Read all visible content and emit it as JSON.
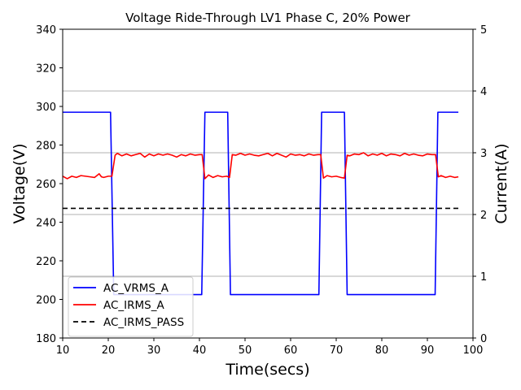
{
  "chart_data": {
    "type": "line",
    "title": "Voltage Ride-Through LV1 Phase C, 20% Power",
    "xlabel": "Time(secs)",
    "ylabel_left": "Voltage(V)",
    "ylabel_right": "Current(A)",
    "xlim": [
      10,
      100
    ],
    "ylim_left": [
      180,
      340
    ],
    "ylim_right": [
      0,
      5
    ],
    "x_ticks": [
      10,
      20,
      30,
      40,
      50,
      60,
      70,
      80,
      90,
      100
    ],
    "y_ticks_left": [
      180,
      200,
      220,
      240,
      260,
      280,
      300,
      320,
      340
    ],
    "y_ticks_right": [
      0,
      1,
      2,
      3,
      4,
      5
    ],
    "grid": "horizontal lines at right-axis ticks",
    "legend_position": "lower-left",
    "series": [
      {
        "name": "AC_VRMS_A",
        "axis": "left",
        "color": "#0000ff",
        "style": "solid",
        "x": [
          10,
          20.5,
          21.2,
          40.5,
          41.2,
          46.2,
          46.8,
          66.2,
          66.8,
          71.8,
          72.4,
          91.7,
          92.3,
          96.8
        ],
        "y": [
          297,
          297,
          202.5,
          202.5,
          297,
          297,
          202.5,
          202.5,
          297,
          297,
          202.5,
          202.5,
          297,
          297
        ]
      },
      {
        "name": "AC_IRMS_A",
        "axis": "right",
        "color": "#ff0000",
        "style": "solid",
        "x": [
          10,
          11,
          12,
          13,
          14,
          15,
          16,
          17,
          18,
          18.5,
          19,
          20,
          20.8,
          21.5,
          22,
          23,
          24,
          25,
          26,
          27,
          28,
          29,
          30,
          31,
          32,
          33,
          34,
          35,
          36,
          37,
          38,
          39,
          40,
          40.6,
          41.2,
          42,
          43,
          44,
          45,
          46,
          46.6,
          47.2,
          48,
          49,
          50,
          51,
          52,
          53,
          54,
          55,
          56,
          57,
          58,
          59,
          60,
          61,
          62,
          63,
          64,
          65,
          66,
          66.6,
          67.2,
          68,
          69,
          70,
          71,
          71.8,
          72.4,
          73,
          74,
          75,
          76,
          77,
          78,
          79,
          80,
          81,
          82,
          83,
          84,
          85,
          86,
          87,
          88,
          89,
          90,
          91,
          91.8,
          92.4,
          93,
          94,
          95,
          96,
          96.8
        ],
        "y": [
          2.62,
          2.58,
          2.62,
          2.6,
          2.63,
          2.62,
          2.61,
          2.6,
          2.66,
          2.61,
          2.6,
          2.62,
          2.62,
          2.96,
          2.99,
          2.95,
          2.98,
          2.95,
          2.97,
          2.99,
          2.93,
          2.98,
          2.95,
          2.98,
          2.96,
          2.98,
          2.96,
          2.93,
          2.97,
          2.95,
          2.98,
          2.96,
          2.97,
          2.97,
          2.58,
          2.64,
          2.6,
          2.63,
          2.61,
          2.62,
          2.6,
          2.97,
          2.96,
          2.99,
          2.96,
          2.98,
          2.96,
          2.95,
          2.97,
          2.99,
          2.95,
          2.99,
          2.96,
          2.93,
          2.98,
          2.96,
          2.97,
          2.95,
          2.98,
          2.96,
          2.97,
          2.97,
          2.59,
          2.63,
          2.61,
          2.62,
          2.6,
          2.59,
          2.96,
          2.95,
          2.98,
          2.97,
          3.0,
          2.95,
          2.98,
          2.96,
          2.99,
          2.95,
          2.98,
          2.97,
          2.95,
          2.99,
          2.96,
          2.98,
          2.96,
          2.95,
          2.98,
          2.97,
          2.97,
          2.61,
          2.63,
          2.6,
          2.62,
          2.6,
          2.61
        ]
      },
      {
        "name": "AC_IRMS_PASS",
        "axis": "right",
        "color": "#000000",
        "style": "dashed",
        "x": [
          10,
          96.8
        ],
        "y": [
          2.1,
          2.1
        ]
      }
    ]
  }
}
